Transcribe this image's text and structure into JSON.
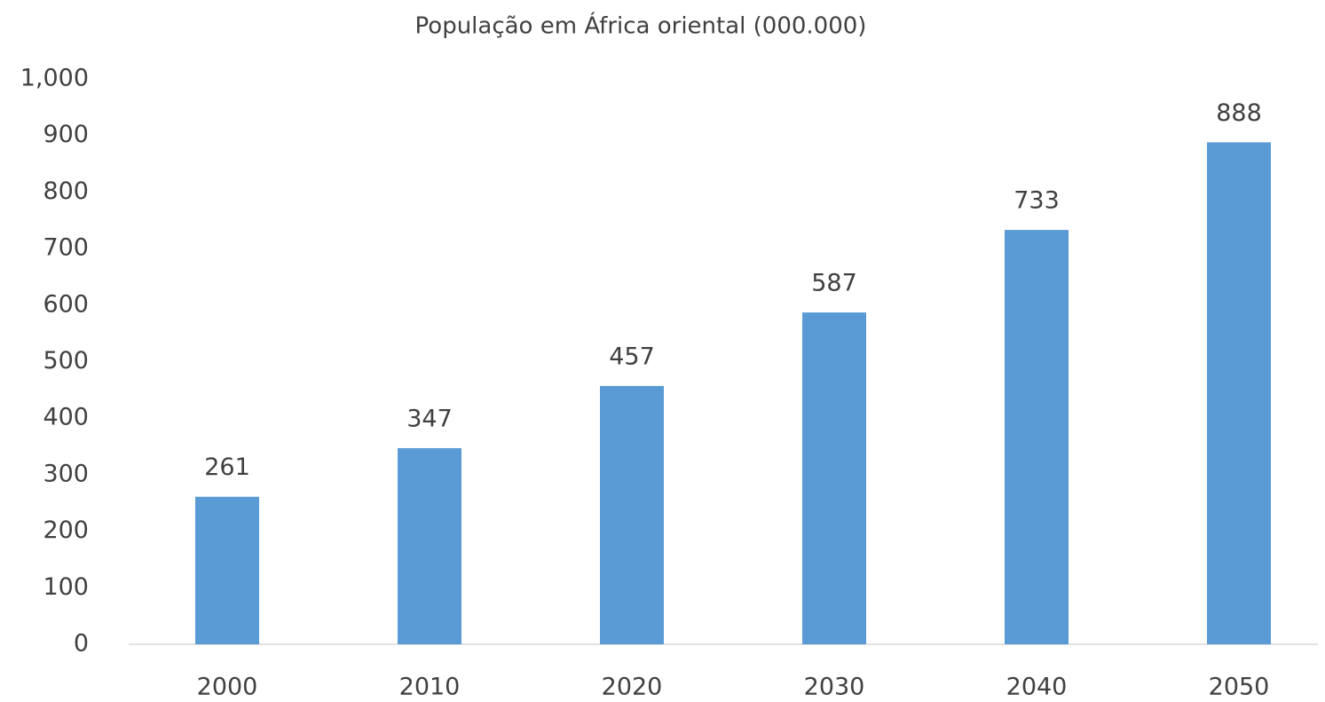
{
  "chart_data": {
    "type": "bar",
    "title": "População em África oriental (000.000)",
    "categories": [
      "2000",
      "2010",
      "2020",
      "2030",
      "2040",
      "2050"
    ],
    "values": [
      261,
      347,
      457,
      587,
      733,
      888
    ],
    "color": "#5b9bd5",
    "ylim": [
      0,
      1000
    ],
    "yticks": [
      0,
      100,
      200,
      300,
      400,
      500,
      600,
      700,
      800,
      900,
      {
        "value": 1000,
        "label": "1,000"
      }
    ],
    "grid": false
  }
}
